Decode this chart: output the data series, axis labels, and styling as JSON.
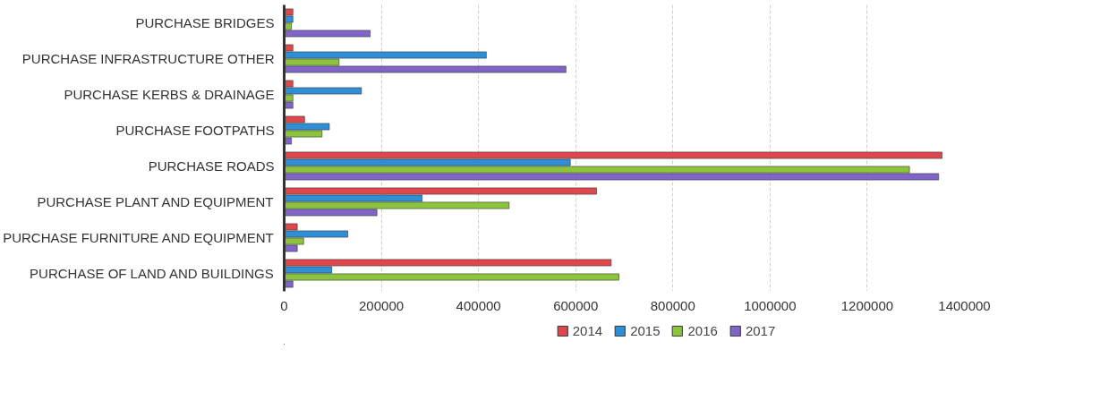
{
  "chart_data": {
    "type": "bar",
    "orientation": "horizontal",
    "categories": [
      "PURCHASE BRIDGES",
      "PURCHASE INFRASTRUCTURE OTHER",
      "PURCHASE KERBS & DRAINAGE",
      "PURCHASE FOOTPATHS",
      "PURCHASE ROADS",
      "PURCHASE PLANT AND EQUIPMENT",
      "PURCHASE FURNITURE AND EQUIPMENT",
      "PURCHASE OF LAND AND BUILDINGS"
    ],
    "series": [
      {
        "name": "2014",
        "color": "#e0474c",
        "values": [
          18000,
          18000,
          18000,
          42000,
          1354000,
          643000,
          27000,
          673000
        ]
      },
      {
        "name": "2015",
        "color": "#2e8fd6",
        "values": [
          18000,
          416000,
          159000,
          93000,
          589000,
          284000,
          131000,
          98000
        ]
      },
      {
        "name": "2016",
        "color": "#8cc43c",
        "values": [
          15000,
          113000,
          18000,
          78000,
          1287000,
          463000,
          40000,
          689000
        ]
      },
      {
        "name": "2017",
        "color": "#8064c8",
        "values": [
          177000,
          580000,
          18000,
          15000,
          1347000,
          191000,
          27000,
          18000
        ]
      }
    ],
    "xlim": [
      0,
      1400000
    ],
    "xticks": [
      0,
      200000,
      400000,
      600000,
      800000,
      1000000,
      1200000,
      1400000
    ],
    "grid": "x",
    "legend": "bottom"
  }
}
